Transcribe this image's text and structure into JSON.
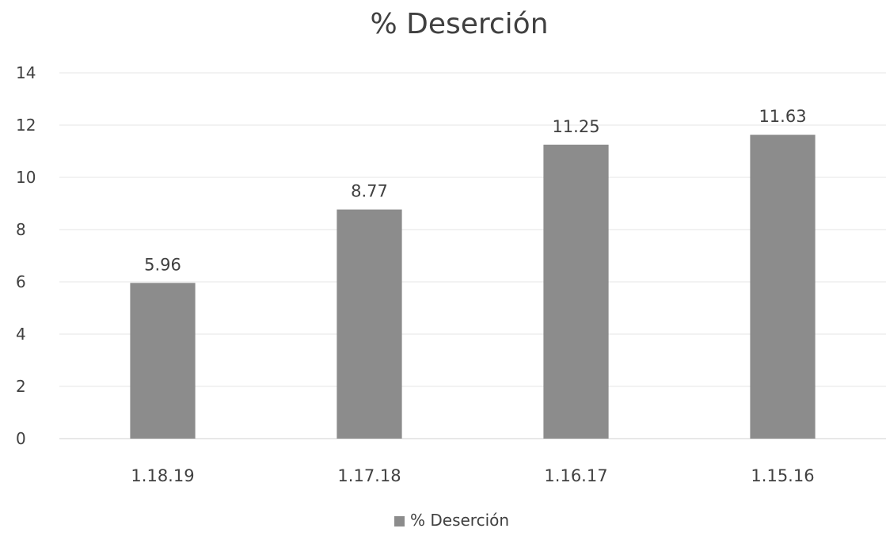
{
  "chart_data": {
    "type": "bar",
    "title": "% Deserción",
    "categories": [
      "1.18.19",
      "1.17.18",
      "1.16.17",
      "1.15.16"
    ],
    "series": [
      {
        "name": "% Deserción",
        "values": [
          5.96,
          8.77,
          11.25,
          11.63
        ]
      }
    ],
    "data_labels": [
      "5.96",
      "8.77",
      "11.25",
      "11.63"
    ],
    "y_ticks": [
      "0",
      "2",
      "4",
      "6",
      "8",
      "10",
      "12",
      "14"
    ],
    "ylim": [
      0,
      14
    ],
    "grid": true,
    "legend_position": "bottom",
    "colors": {
      "bar": "#8c8c8c",
      "grid": "#e6e6e6",
      "text": "#404040",
      "axis": "#d0d0d0"
    }
  }
}
